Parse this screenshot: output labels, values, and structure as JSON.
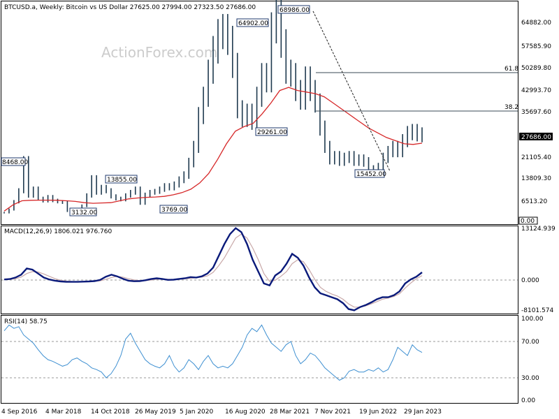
{
  "header": {
    "title": "BTCUSD.a, Weekly:  Bitcoin vs US Dollar  27625.00 27994.00 27323.50 27686.00",
    "watermark": "ActionForex.com"
  },
  "price_panel": {
    "y_ticks": [
      "64882.00",
      "57585.90",
      "50289.80",
      "42993.70",
      "35697.60",
      "28401.50",
      "21105.40",
      "13809.30",
      "6513.20",
      "0.00"
    ],
    "current_price": "27686.00",
    "fib_labels": [
      "61.8",
      "38.2"
    ],
    "annotations": [
      "8468.00",
      "3132.00",
      "13855.00",
      "3769.00",
      "64902.00",
      "29261.00",
      "68986.00",
      "15452.00"
    ]
  },
  "macd_panel": {
    "label": "MACD(12,26,9) 1806.021 976.760",
    "y_ticks": [
      "13124.939",
      "0.000",
      "-8101.574"
    ]
  },
  "rsi_panel": {
    "label": "RSI(14) 58.75",
    "y_ticks": [
      "100.00",
      "70.00",
      "30.00",
      "0.00"
    ]
  },
  "x_axis": {
    "labels": [
      "4 Sep 2016",
      "4 Mar 2018",
      "14 Oct 2018",
      "26 May 2019",
      "5 Jan 2020",
      "16 Aug 2020",
      "28 Mar 2021",
      "7 Nov 2021",
      "19 Jun 2022",
      "29 Jan 2023"
    ]
  },
  "colors": {
    "bars": "#1f3a4f",
    "ma": "#d62728",
    "macd": "#0a1a7a",
    "signal": "#c8a8a8",
    "rsi": "#3d8fd1",
    "fib": "#3a4a55",
    "grid": "#9a9a9a"
  },
  "chart_data": [
    {
      "type": "line",
      "title": "BTCUSD.a, Weekly:  Bitcoin vs US Dollar  27625.00 27994.00 27323.50 27686.00",
      "x_labels": [
        "4 Sep 2016",
        "4 Mar 2018",
        "14 Oct 2018",
        "26 May 2019",
        "5 Jan 2020",
        "16 Aug 2020",
        "28 Mar 2021",
        "7 Nov 2021",
        "19 Jun 2022",
        "29 Jan 2023"
      ],
      "ylim": [
        0,
        70000
      ],
      "series": [
        {
          "values": [
            3000,
            4000,
            6500,
            10000,
            19500,
            8468,
            10500,
            7500,
            6800,
            8000,
            6900,
            6500,
            6300,
            3500,
            3900,
            3800,
            5200,
            8500,
            13855,
            9500,
            11000,
            10000,
            8200,
            7500,
            7200,
            8500,
            9500,
            10500,
            6000,
            8700,
            9500,
            9800,
            10500,
            11500,
            11000,
            12000,
            13500,
            15000,
            19000,
            24000,
            34000,
            40000,
            48000,
            55000,
            60000,
            61500,
            58000,
            50000,
            36000,
            33000,
            35000,
            32000,
            40000,
            47000,
            45000,
            62000,
            66000,
            57000,
            48000,
            47000,
            42000,
            39000,
            46000,
            42000,
            38000,
            30000,
            24000,
            20000,
            21000,
            19500,
            20500,
            21000,
            19500,
            20000,
            19200,
            16500,
            16800,
            17500,
            20500,
            22500,
            24000,
            22500,
            26000,
            28400,
            29000,
            28000,
            27686
          ]
        },
        {
          "values": [
            3500,
            5500,
            6800,
            6950,
            7000,
            7000,
            6950,
            6800,
            6600,
            6200,
            6000,
            6100,
            6200,
            6800,
            7400,
            7700,
            7900,
            8000,
            8200,
            8700,
            9400,
            10500,
            12500,
            15500,
            20000,
            25000,
            29000,
            30500,
            31500,
            34500,
            38000,
            42000,
            43000,
            42000,
            41500,
            41000,
            40000,
            38000,
            36000,
            34000,
            32000,
            30000,
            28500,
            27000,
            26000,
            25000,
            24800,
            25200
          ]
        }
      ],
      "annotations": [
        "8468.00",
        "3132.00",
        "13855.00",
        "3769.00",
        "64902.00",
        "29261.00",
        "68986.00",
        "15452.00"
      ],
      "fib_levels": [
        {
          "label": "61.8",
          "value": 48400
        },
        {
          "label": "38.2",
          "value": 35700
        }
      ],
      "current": 27686
    },
    {
      "type": "line",
      "title": "MACD(12,26,9) 1806.021 976.760",
      "ylim": [
        -8101.574,
        13124.939
      ],
      "series": [
        {
          "values": [
            0,
            100,
            500,
            1200,
            2800,
            2500,
            1500,
            500,
            0,
            -300,
            -500,
            -600,
            -600,
            -600,
            -550,
            -500,
            -400,
            -100,
            700,
            1200,
            800,
            200,
            -300,
            -450,
            -400,
            -200,
            100,
            300,
            150,
            -100,
            -50,
            150,
            300,
            600,
            500,
            800,
            1500,
            3000,
            6000,
            9000,
            11500,
            13000,
            12000,
            9000,
            5000,
            2000,
            -1000,
            -1500,
            1000,
            2000,
            4000,
            6500,
            5500,
            3500,
            500,
            -2000,
            -3500,
            -4000,
            -4500,
            -5000,
            -6000,
            -7500,
            -7800,
            -7000,
            -6500,
            -5800,
            -5000,
            -4500,
            -4500,
            -4000,
            -3000,
            -1000,
            0,
            700,
            1806
          ]
        },
        {
          "values": [
            0,
            50,
            200,
            600,
            1500,
            2000,
            1900,
            1400,
            800,
            200,
            -200,
            -400,
            -500,
            -550,
            -560,
            -540,
            -480,
            -350,
            50,
            500,
            800,
            600,
            200,
            -100,
            -300,
            -300,
            -150,
            50,
            150,
            50,
            -20,
            50,
            150,
            300,
            450,
            600,
            900,
            1800,
            3500,
            5500,
            8000,
            10500,
            11500,
            10500,
            8000,
            5000,
            1500,
            -500,
            -200,
            800,
            2000,
            4000,
            5000,
            4500,
            2500,
            0,
            -2000,
            -3000,
            -3700,
            -4200,
            -5000,
            -6200,
            -7000,
            -7000,
            -6700,
            -6200,
            -5600,
            -5000,
            -4700,
            -4300,
            -3600,
            -2200,
            -900,
            200,
            977
          ]
        }
      ],
      "zero_line": 0
    },
    {
      "type": "line",
      "title": "RSI(14) 58.75",
      "ylim": [
        0,
        100
      ],
      "series": [
        {
          "values": [
            85,
            92,
            88,
            90,
            80,
            75,
            70,
            62,
            55,
            50,
            48,
            45,
            42,
            44,
            50,
            52,
            48,
            45,
            40,
            38,
            35,
            28,
            33,
            42,
            55,
            75,
            82,
            70,
            60,
            50,
            45,
            42,
            40,
            45,
            55,
            42,
            35,
            40,
            50,
            45,
            38,
            48,
            55,
            45,
            40,
            42,
            40,
            45,
            55,
            65,
            80,
            88,
            84,
            92,
            80,
            70,
            65,
            60,
            68,
            72,
            55,
            45,
            50,
            58,
            55,
            48,
            40,
            35,
            30,
            25,
            28,
            36,
            38,
            35,
            35,
            38,
            36,
            40,
            35,
            38,
            50,
            65,
            60,
            55,
            68,
            62,
            58.75
          ]
        }
      ],
      "ref_levels": [
        70,
        30
      ]
    }
  ]
}
